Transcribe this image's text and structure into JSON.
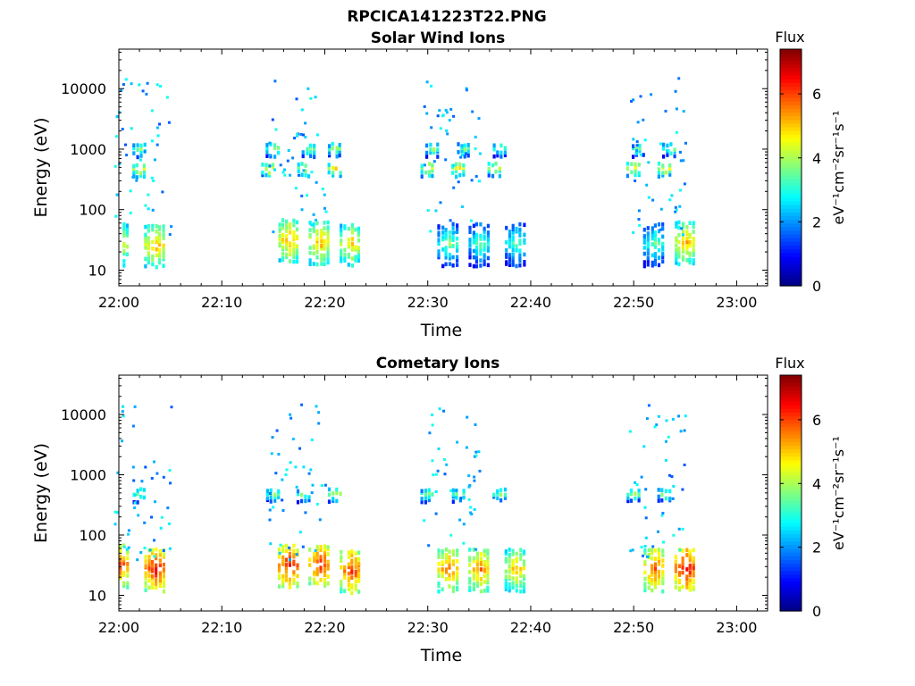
{
  "figure": {
    "filename": "RPCICA141223T22.PNG"
  },
  "chart_data": [
    {
      "type": "heatmap",
      "title": "Solar Wind Ions",
      "xlabel": "Time",
      "ylabel": "Energy (eV)",
      "x_range": [
        "22:00",
        "23:03"
      ],
      "xticks": [
        "22:00",
        "22:10",
        "22:20",
        "22:30",
        "22:40",
        "22:50",
        "23:00"
      ],
      "y_scale": "log",
      "ylim": [
        5.5,
        45000
      ],
      "yticks": [
        10,
        100,
        1000,
        10000
      ],
      "ytick_labels": [
        "10",
        "100",
        "1000",
        "10000"
      ],
      "grid": false,
      "colorbar": {
        "label": "Flux",
        "unit": "eV⁻¹cm⁻²sr⁻¹s⁻¹",
        "range": [
          0,
          7.4
        ],
        "ticks": [
          0,
          2,
          4,
          6
        ],
        "colormap": "jet"
      },
      "bursts_start": [
        "22:00",
        "22:15",
        "22:30",
        "22:50"
      ],
      "blobs": [
        {
          "t": "22:02",
          "e": 500,
          "flux": 4.8
        },
        {
          "t": "22:02",
          "e": 1100,
          "flux": 4.0
        },
        {
          "t": "22:00",
          "e": 30,
          "flux": 4.8
        },
        {
          "t": "22:03.5",
          "e": 28,
          "flux": 5.3
        },
        {
          "t": "22:14.5",
          "e": 520,
          "flux": 4.8
        },
        {
          "t": "22:15",
          "e": 1100,
          "flux": 4.0
        },
        {
          "t": "22:16.5",
          "e": 35,
          "flux": 5.4
        },
        {
          "t": "22:18",
          "e": 520,
          "flux": 4.8
        },
        {
          "t": "22:18.5",
          "e": 1100,
          "flux": 4.0
        },
        {
          "t": "22:19.5",
          "e": 32,
          "flux": 5.3
        },
        {
          "t": "22:21",
          "e": 520,
          "flux": 4.8
        },
        {
          "t": "22:21",
          "e": 1100,
          "flux": 4.0
        },
        {
          "t": "22:22.5",
          "e": 30,
          "flux": 5.0
        },
        {
          "t": "22:30",
          "e": 520,
          "flux": 4.8
        },
        {
          "t": "22:30.5",
          "e": 1100,
          "flux": 3.8
        },
        {
          "t": "22:33",
          "e": 520,
          "flux": 4.8
        },
        {
          "t": "22:33.5",
          "e": 1100,
          "flux": 3.8
        },
        {
          "t": "22:36.5",
          "e": 520,
          "flux": 4.6
        },
        {
          "t": "22:37",
          "e": 1100,
          "flux": 3.8
        },
        {
          "t": "22:32",
          "e": 30,
          "flux": 3.8
        },
        {
          "t": "22:35",
          "e": 30,
          "flux": 3.6
        },
        {
          "t": "22:38.5",
          "e": 30,
          "flux": 3.6
        },
        {
          "t": "22:50",
          "e": 520,
          "flux": 4.8
        },
        {
          "t": "22:50.5",
          "e": 1100,
          "flux": 3.8
        },
        {
          "t": "22:53",
          "e": 520,
          "flux": 4.8
        },
        {
          "t": "22:53.5",
          "e": 1100,
          "flux": 3.8
        },
        {
          "t": "22:52",
          "e": 30,
          "flux": 3.6
        },
        {
          "t": "22:55",
          "e": 32,
          "flux": 5.2
        }
      ]
    },
    {
      "type": "heatmap",
      "title": "Cometary Ions",
      "xlabel": "Time",
      "ylabel": "Energy (eV)",
      "x_range": [
        "22:00",
        "23:03"
      ],
      "xticks": [
        "22:00",
        "22:10",
        "22:20",
        "22:30",
        "22:40",
        "22:50",
        "23:00"
      ],
      "y_scale": "log",
      "ylim": [
        5.5,
        45000
      ],
      "yticks": [
        10,
        100,
        1000,
        10000
      ],
      "ytick_labels": [
        "10",
        "100",
        "1000",
        "10000"
      ],
      "grid": false,
      "colorbar": {
        "label": "Flux",
        "unit": "eV⁻¹cm⁻²sr⁻¹s⁻¹",
        "range": [
          0,
          7.4
        ],
        "ticks": [
          0,
          2,
          4,
          6
        ],
        "colormap": "jet"
      },
      "bursts_start": [
        "22:00",
        "22:15",
        "22:30",
        "22:50"
      ],
      "blobs": [
        {
          "t": "22:02",
          "e": 520,
          "flux": 4.0
        },
        {
          "t": "22:00",
          "e": 35,
          "flux": 6.0
        },
        {
          "t": "22:03.5",
          "e": 30,
          "flux": 6.5
        },
        {
          "t": "22:15",
          "e": 520,
          "flux": 4.0
        },
        {
          "t": "22:16.5",
          "e": 35,
          "flux": 6.4
        },
        {
          "t": "22:18",
          "e": 520,
          "flux": 4.0
        },
        {
          "t": "22:19.5",
          "e": 35,
          "flux": 6.3
        },
        {
          "t": "22:21",
          "e": 520,
          "flux": 4.2
        },
        {
          "t": "22:22.5",
          "e": 28,
          "flux": 6.2
        },
        {
          "t": "22:30",
          "e": 520,
          "flux": 4.0
        },
        {
          "t": "22:32",
          "e": 30,
          "flux": 5.8
        },
        {
          "t": "22:33",
          "e": 520,
          "flux": 4.0
        },
        {
          "t": "22:35",
          "e": 30,
          "flux": 5.7
        },
        {
          "t": "22:37",
          "e": 520,
          "flux": 3.8
        },
        {
          "t": "22:38.5",
          "e": 30,
          "flux": 5.2
        },
        {
          "t": "22:50",
          "e": 520,
          "flux": 4.0
        },
        {
          "t": "22:52",
          "e": 30,
          "flux": 6.0
        },
        {
          "t": "22:53",
          "e": 520,
          "flux": 4.0
        },
        {
          "t": "22:55",
          "e": 30,
          "flux": 6.6
        }
      ]
    }
  ]
}
